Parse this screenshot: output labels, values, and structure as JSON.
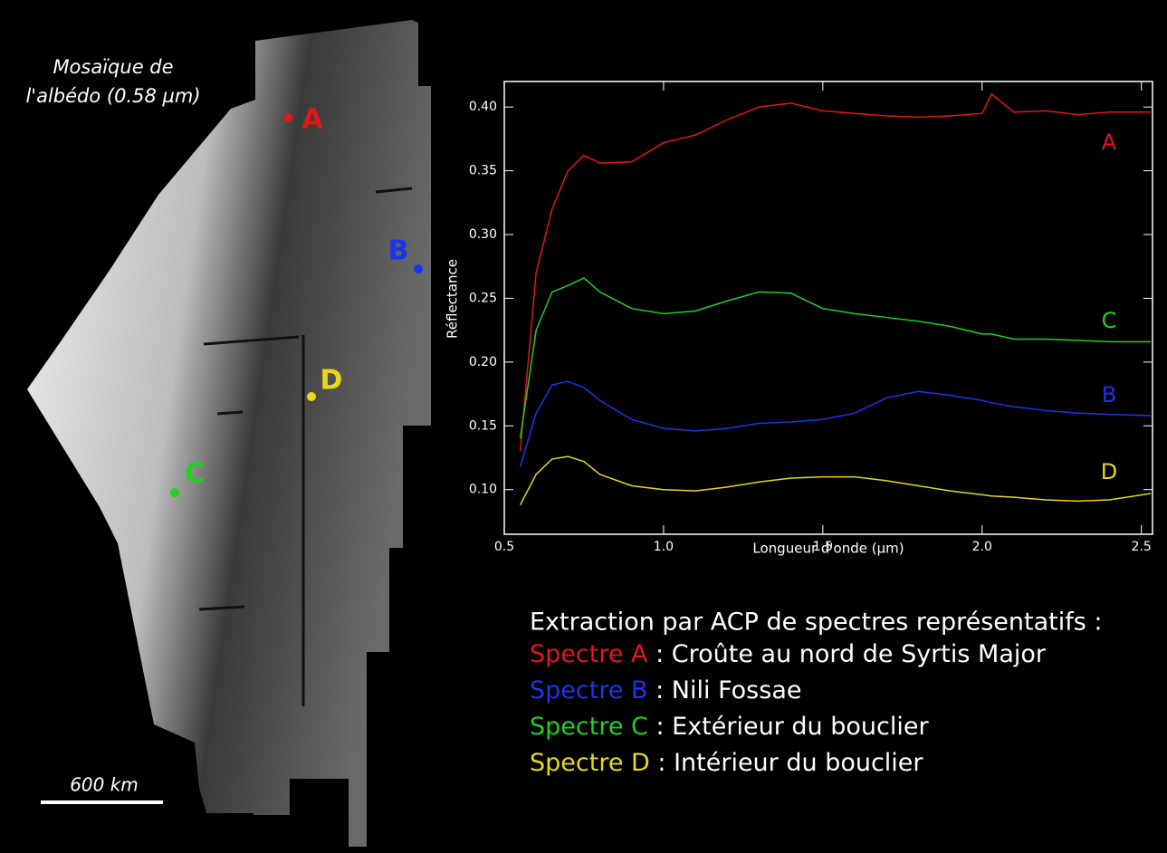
{
  "map": {
    "title": [
      "Mosaïque de",
      "l'albédo (0.58 µm)"
    ],
    "points": [
      {
        "label": "A"
      },
      {
        "label": "B"
      },
      {
        "label": "C"
      },
      {
        "label": "D"
      }
    ],
    "scale_label": "600 km"
  },
  "chart_data": {
    "type": "line",
    "y_label": "Réflectance",
    "x_label": "Longueur d'onde (µm)",
    "x": [
      0.55,
      0.6,
      0.65,
      0.7,
      0.75,
      0.8,
      0.9,
      1.0,
      1.1,
      1.2,
      1.3,
      1.4,
      1.5,
      1.6,
      1.7,
      1.8,
      1.9,
      2.0,
      2.03,
      2.1,
      2.2,
      2.3,
      2.4,
      2.53
    ],
    "series": [
      {
        "name": "A",
        "color": "#e01818",
        "values": [
          0.13,
          0.27,
          0.32,
          0.35,
          0.362,
          0.356,
          0.357,
          0.372,
          0.378,
          0.39,
          0.4,
          0.403,
          0.397,
          0.395,
          0.393,
          0.392,
          0.393,
          0.395,
          0.41,
          0.396,
          0.397,
          0.394,
          0.396,
          0.396
        ]
      },
      {
        "name": "B",
        "color": "#1a35ee",
        "values": [
          0.118,
          0.16,
          0.182,
          0.185,
          0.18,
          0.17,
          0.155,
          0.148,
          0.146,
          0.148,
          0.152,
          0.153,
          0.155,
          0.16,
          0.172,
          0.177,
          0.174,
          0.17,
          0.168,
          0.165,
          0.162,
          0.16,
          0.159,
          0.158
        ]
      },
      {
        "name": "C",
        "color": "#1ed21e",
        "values": [
          0.14,
          0.225,
          0.255,
          0.26,
          0.266,
          0.255,
          0.242,
          0.238,
          0.24,
          0.248,
          0.255,
          0.254,
          0.242,
          0.238,
          0.235,
          0.232,
          0.228,
          0.222,
          0.222,
          0.218,
          0.218,
          0.217,
          0.216,
          0.216
        ]
      },
      {
        "name": "D",
        "color": "#e8d818",
        "values": [
          0.088,
          0.112,
          0.124,
          0.126,
          0.122,
          0.112,
          0.103,
          0.1,
          0.099,
          0.102,
          0.106,
          0.109,
          0.11,
          0.11,
          0.107,
          0.103,
          0.099,
          0.096,
          0.095,
          0.094,
          0.092,
          0.091,
          0.092,
          0.097
        ]
      }
    ],
    "xlim": [
      0.5,
      2.535
    ],
    "ylim": [
      0.065,
      0.42
    ],
    "xticks": [
      0.5,
      {
        "value": 1,
        "label": "1.0"
      },
      1.5,
      {
        "value": 2,
        "label": "2.0"
      },
      2.5
    ],
    "yticks": [
      {
        "value": 0.1,
        "label": "0.10"
      },
      {
        "value": 0.15,
        "label": "0.15"
      },
      {
        "value": 0.2,
        "label": "0.20"
      },
      {
        "value": 0.25,
        "label": "0.25"
      },
      {
        "value": 0.3,
        "label": "0.30"
      },
      {
        "value": 0.35,
        "label": "0.35"
      },
      {
        "value": 0.4,
        "label": "0.40"
      }
    ]
  },
  "legend": {
    "title": "Extraction par ACP de spectres représentatifs :",
    "items": [
      {
        "label": "Spectre A",
        "text": " : Croûte au nord de Syrtis Major"
      },
      {
        "label": "Spectre B",
        "text": " : Nili Fossae"
      },
      {
        "label": "Spectre C",
        "text": " : Extérieur du bouclier"
      },
      {
        "label": "Spectre D",
        "text": " : Intérieur du bouclier"
      }
    ]
  }
}
